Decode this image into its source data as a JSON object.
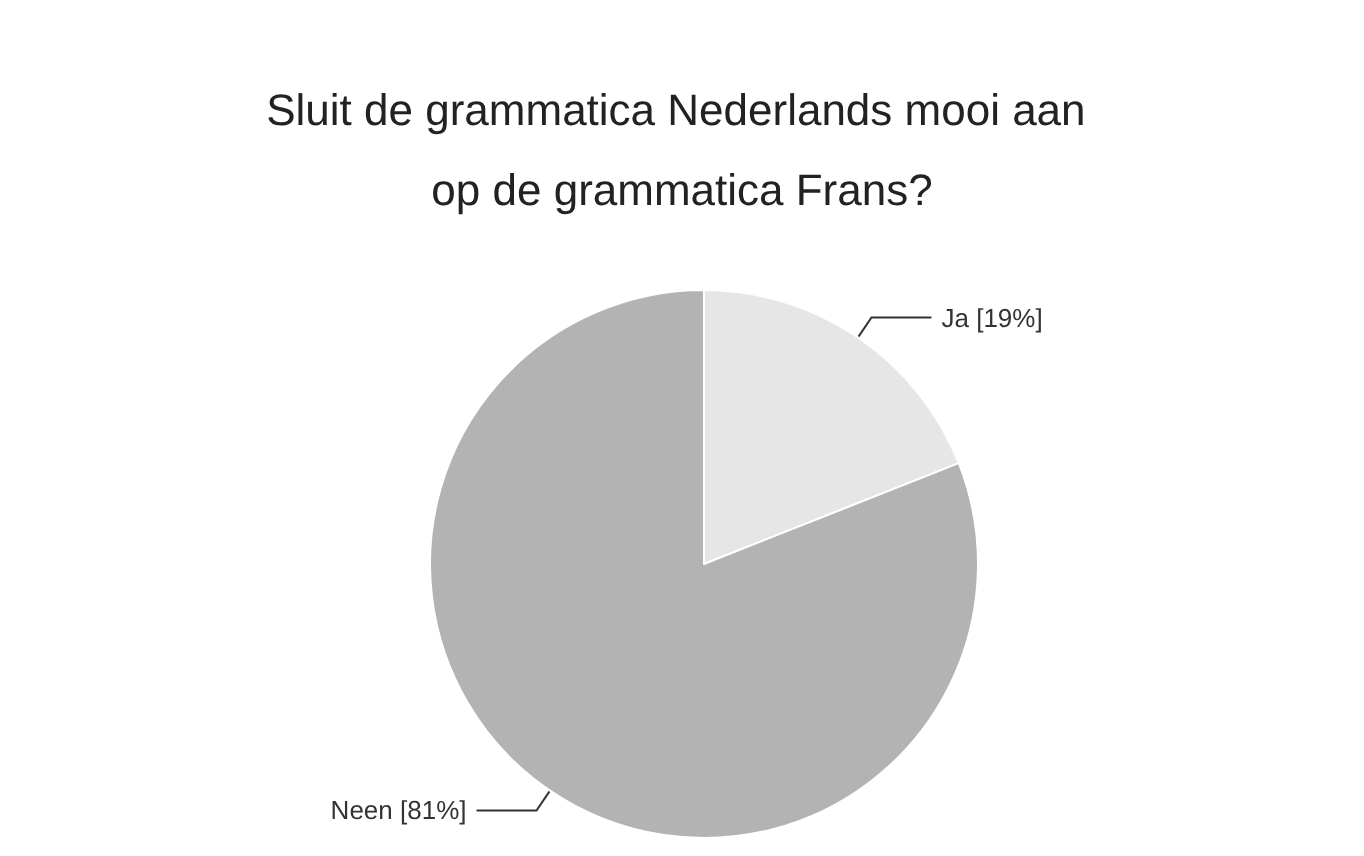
{
  "chart_data": {
    "type": "pie",
    "title": "Sluit de grammatica Nederlands mooi aan op de grammatica Frans?",
    "categories": [
      "Ja",
      "Neen"
    ],
    "values": [
      19,
      81
    ],
    "colors": [
      "#e6e6e6",
      "#b3b3b3"
    ],
    "value_labels": [
      "[19%]",
      "[81%]"
    ],
    "legend": false
  }
}
